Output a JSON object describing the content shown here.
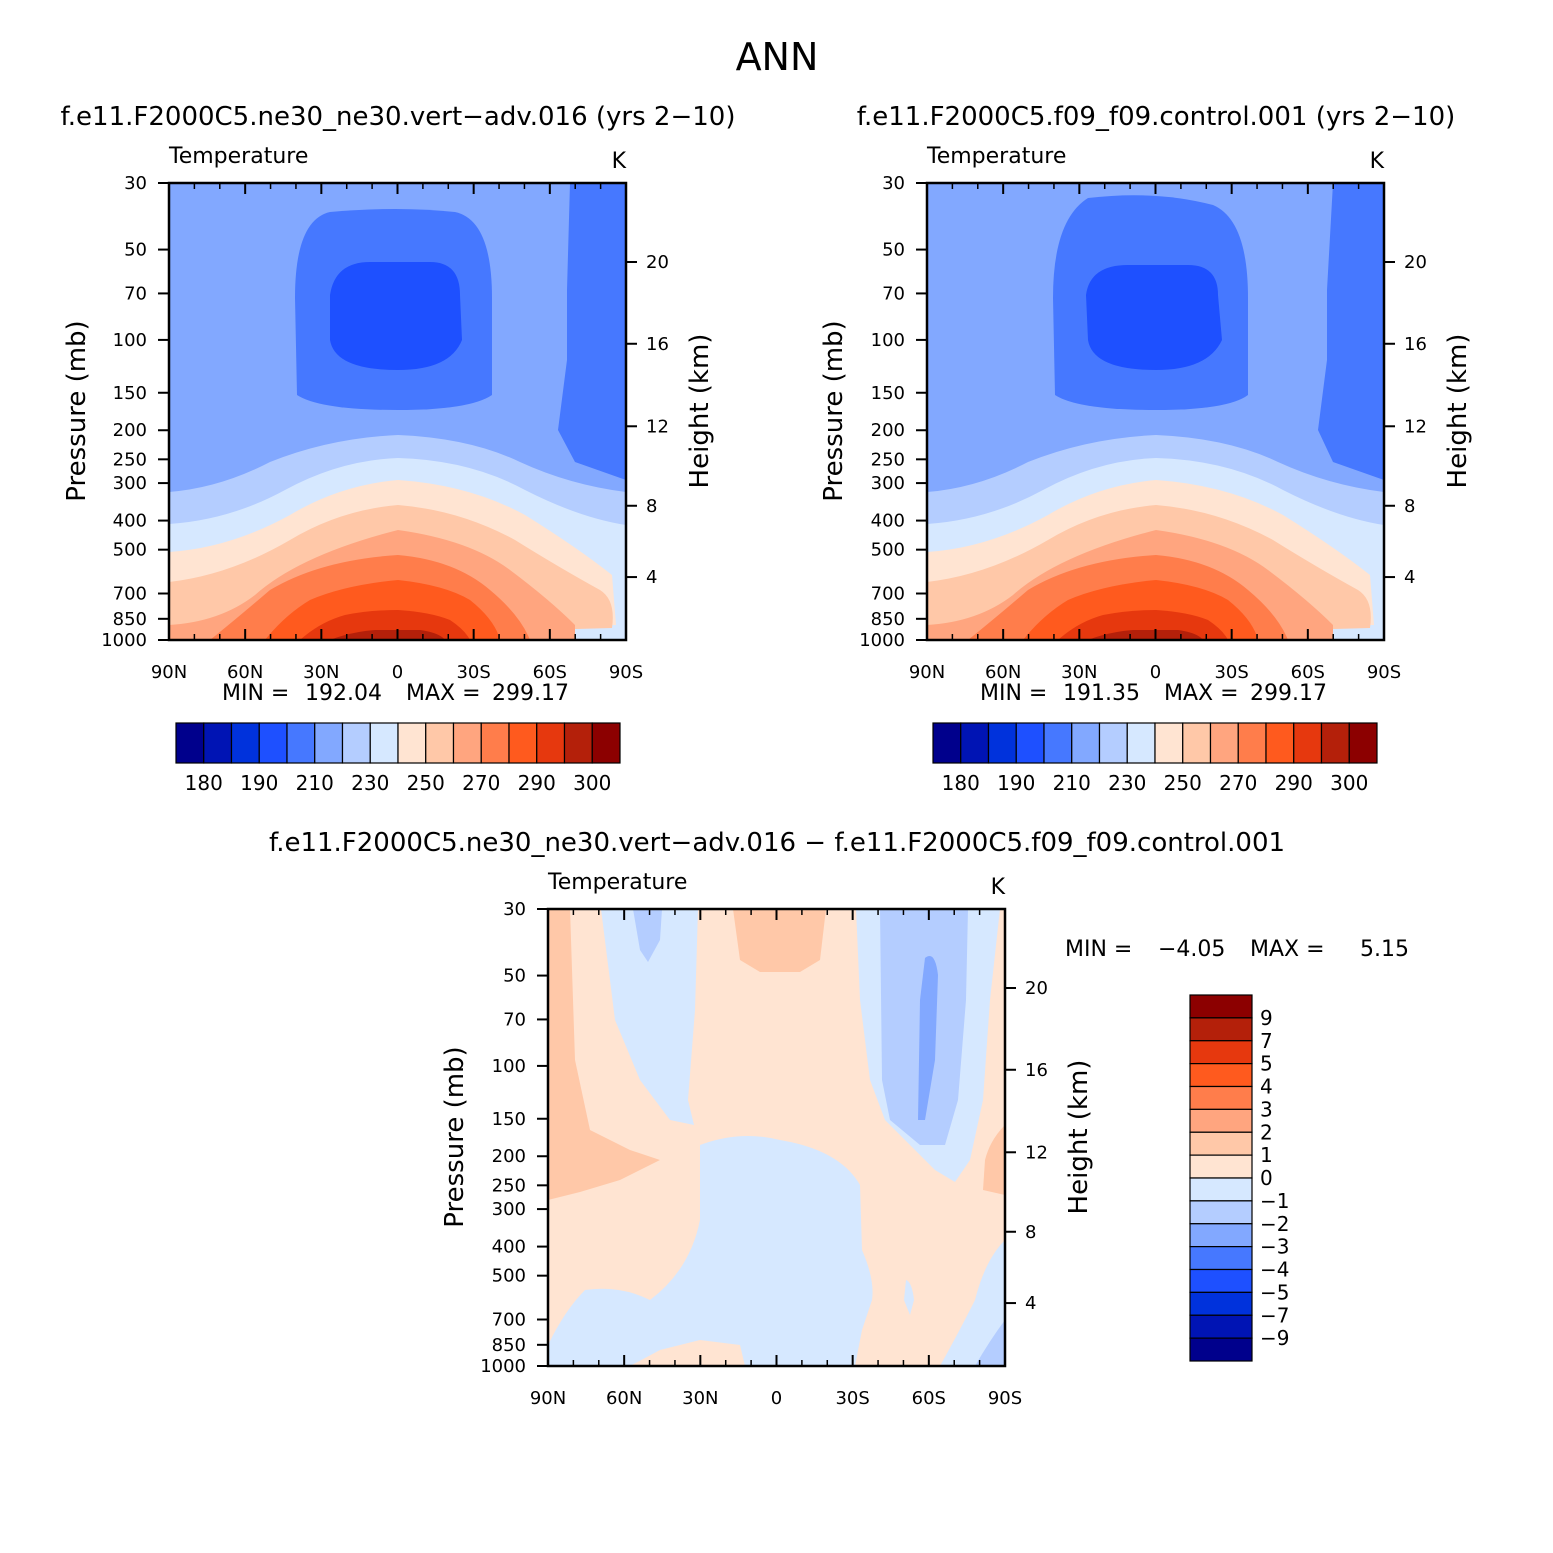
{
  "page_title": "ANN",
  "chart_data": [
    {
      "type": "heatmap",
      "id": "case",
      "title": "f.e11.F2000C5.ne30_ne30.vert−adv.016 (yrs 2−10)",
      "variable": "Temperature",
      "units": "K",
      "ylabel": "Pressure (mb)",
      "y2label": "Height (km)",
      "x_ticks": [
        "90N",
        "60N",
        "30N",
        "0",
        "30S",
        "60S",
        "90S"
      ],
      "x_tick_values": [
        90,
        60,
        30,
        0,
        -30,
        -60,
        -90
      ],
      "y_ticks": [
        "30",
        "50",
        "70",
        "100",
        "150",
        "200",
        "250",
        "300",
        "400",
        "500",
        "700",
        "850",
        "1000"
      ],
      "y_tick_values": [
        30,
        50,
        70,
        100,
        150,
        200,
        250,
        300,
        400,
        500,
        700,
        850,
        1000
      ],
      "y2_ticks": [
        "20",
        "16",
        "12",
        "8",
        "4"
      ],
      "y2_tick_values": [
        20,
        16,
        12,
        8,
        4
      ],
      "xlim": [
        90,
        -90
      ],
      "ylim": [
        1000,
        30
      ],
      "y_scale": "log",
      "min_label": "MIN =",
      "min_value": "192.04",
      "max_label": "MAX =",
      "max_value": "299.17",
      "levels": [
        180,
        190,
        200,
        210,
        220,
        230,
        240,
        250,
        260,
        270,
        280,
        290,
        300
      ],
      "colorbar_labels": [
        "180",
        "190",
        "210",
        "230",
        "250",
        "270",
        "290",
        "300"
      ],
      "contours": [
        {
          "level": "<230",
          "color": "#82a8ff"
        },
        {
          "level": "190-210",
          "color": "#4678ff"
        },
        {
          "level": "<200",
          "color": "#1e50ff"
        },
        {
          "level": "230-240",
          "color": "#b4cdff"
        },
        {
          "level": "240-250",
          "color": "#d6e8ff"
        },
        {
          "level": "250-260",
          "color": "#ffe4d2"
        },
        {
          "level": "260-270",
          "color": "#ffc8a8"
        },
        {
          "level": "270-280",
          "color": "#ffa57f"
        },
        {
          "level": "280-290",
          "color": "#ff7d4b"
        },
        {
          "level": "290-295",
          "color": "#ff5a1e"
        },
        {
          "level": "295-300",
          "color": "#e6380e"
        },
        {
          "level": ">300",
          "color": "#b4200a"
        }
      ]
    },
    {
      "type": "heatmap",
      "id": "control",
      "title": "f.e11.F2000C5.f09_f09.control.001 (yrs 2−10)",
      "variable": "Temperature",
      "units": "K",
      "ylabel": "Pressure (mb)",
      "y2label": "Height (km)",
      "x_ticks": [
        "90N",
        "60N",
        "30N",
        "0",
        "30S",
        "60S",
        "90S"
      ],
      "x_tick_values": [
        90,
        60,
        30,
        0,
        -30,
        -60,
        -90
      ],
      "y_ticks": [
        "30",
        "50",
        "70",
        "100",
        "150",
        "200",
        "250",
        "300",
        "400",
        "500",
        "700",
        "850",
        "1000"
      ],
      "y_tick_values": [
        30,
        50,
        70,
        100,
        150,
        200,
        250,
        300,
        400,
        500,
        700,
        850,
        1000
      ],
      "y2_ticks": [
        "20",
        "16",
        "12",
        "8",
        "4"
      ],
      "y2_tick_values": [
        20,
        16,
        12,
        8,
        4
      ],
      "xlim": [
        90,
        -90
      ],
      "ylim": [
        1000,
        30
      ],
      "y_scale": "log",
      "min_label": "MIN =",
      "min_value": "191.35",
      "max_label": "MAX =",
      "max_value": "299.17",
      "levels": [
        180,
        190,
        200,
        210,
        220,
        230,
        240,
        250,
        260,
        270,
        280,
        290,
        300
      ],
      "colorbar_labels": [
        "180",
        "190",
        "210",
        "230",
        "250",
        "270",
        "290",
        "300"
      ]
    },
    {
      "type": "heatmap",
      "id": "difference",
      "title": "f.e11.F2000C5.ne30_ne30.vert−adv.016 − f.e11.F2000C5.f09_f09.control.001",
      "variable": "Temperature",
      "units": "K",
      "ylabel": "Pressure (mb)",
      "y2label": "Height (km)",
      "x_ticks": [
        "90N",
        "60N",
        "30N",
        "0",
        "30S",
        "60S",
        "90S"
      ],
      "x_tick_values": [
        90,
        60,
        30,
        0,
        -30,
        -60,
        -90
      ],
      "y_ticks": [
        "30",
        "50",
        "70",
        "100",
        "150",
        "200",
        "250",
        "300",
        "400",
        "500",
        "700",
        "850",
        "1000"
      ],
      "y_tick_values": [
        30,
        50,
        70,
        100,
        150,
        200,
        250,
        300,
        400,
        500,
        700,
        850,
        1000
      ],
      "y2_ticks": [
        "20",
        "16",
        "12",
        "8",
        "4"
      ],
      "y2_tick_values": [
        20,
        16,
        12,
        8,
        4
      ],
      "xlim": [
        90,
        -90
      ],
      "ylim": [
        1000,
        30
      ],
      "y_scale": "log",
      "min_label": "MIN =",
      "min_value": "−4.05",
      "max_label": "MAX =",
      "max_value": "5.15",
      "levels": [
        -9,
        -7,
        -5,
        -4,
        -3,
        -2,
        -1,
        0,
        1,
        2,
        3,
        4,
        5,
        7,
        9
      ],
      "colorbar_labels": [
        "9",
        "7",
        "5",
        "4",
        "3",
        "2",
        "1",
        "0",
        "−1",
        "−2",
        "−3",
        "−4",
        "−5",
        "−7",
        "−9"
      ],
      "contours": [
        {
          "level": "0-1",
          "color": "#ffe4d2"
        },
        {
          "level": "1-2",
          "color": "#ffc8a8"
        },
        {
          "level": "-1-0",
          "color": "#d6e8ff"
        },
        {
          "level": "-2--1",
          "color": "#b4cdff"
        },
        {
          "level": "-3--2",
          "color": "#82a8ff"
        }
      ]
    }
  ],
  "palette_abs": [
    "#00008c",
    "#0014b4",
    "#0032dc",
    "#1e50ff",
    "#4678ff",
    "#82a8ff",
    "#b4cdff",
    "#d6e8ff",
    "#ffe4d2",
    "#ffc8a8",
    "#ffa57f",
    "#ff7d4b",
    "#ff5a1e",
    "#e6380e",
    "#b4200a",
    "#8c0000"
  ],
  "palette_diff": [
    "#8c0000",
    "#b4200a",
    "#e6380e",
    "#ff5a1e",
    "#ff7d4b",
    "#ffa57f",
    "#ffc8a8",
    "#ffe4d2",
    "#d6e8ff",
    "#b4cdff",
    "#82a8ff",
    "#4678ff",
    "#1e50ff",
    "#0032dc",
    "#0014b4",
    "#00008c"
  ]
}
